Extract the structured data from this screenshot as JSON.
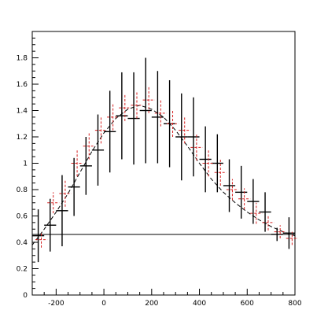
{
  "chart_data": {
    "type": "scatter",
    "title": "",
    "xlabel": "",
    "ylabel": "",
    "xlim": [
      -300,
      800
    ],
    "ylim": [
      0,
      2.0
    ],
    "x_ticks": [
      -200,
      0,
      200,
      400,
      600,
      800
    ],
    "x_tick_labels": [
      "-200",
      "0",
      "200",
      "400",
      "600",
      "800"
    ],
    "y_ticks": [
      0,
      0.2,
      0.4,
      0.6,
      0.8,
      1,
      1.2,
      1.4,
      1.6,
      1.8
    ],
    "y_tick_labels": [
      "0",
      "0.2",
      "0.4",
      "0.6",
      "0.8",
      "1",
      "1.2",
      "1.4",
      "1.6",
      "1.8"
    ],
    "grid": false,
    "legend": "none",
    "baseline": {
      "y": 0.46,
      "x_range": [
        -300,
        800
      ],
      "color": "#000000"
    },
    "fit_curve": {
      "style": "dashed",
      "color": "#000000",
      "x": [
        -300,
        -250,
        -200,
        -150,
        -100,
        -50,
        0,
        50,
        100,
        150,
        200,
        250,
        300,
        350,
        400,
        450,
        500,
        550,
        600,
        650,
        700,
        750,
        800
      ],
      "y": [
        0.38,
        0.5,
        0.63,
        0.77,
        0.93,
        1.09,
        1.23,
        1.34,
        1.41,
        1.44,
        1.41,
        1.35,
        1.25,
        1.13,
        1.0,
        0.88,
        0.78,
        0.7,
        0.63,
        0.57,
        0.52,
        0.48,
        0.45
      ]
    },
    "series": [
      {
        "style": "black-errorbars",
        "color": "#000000",
        "points": [
          {
            "x": -275,
            "y": 0.45,
            "xerr": 25,
            "yerr_low": 0.2,
            "yerr_high": 0.2
          },
          {
            "x": -225,
            "y": 0.53,
            "xerr": 25,
            "yerr_low": 0.2,
            "yerr_high": 0.2
          },
          {
            "x": -175,
            "y": 0.64,
            "xerr": 25,
            "yerr_low": 0.27,
            "yerr_high": 0.27
          },
          {
            "x": -125,
            "y": 0.82,
            "xerr": 25,
            "yerr_low": 0.22,
            "yerr_high": 0.22
          },
          {
            "x": -75,
            "y": 0.98,
            "xerr": 25,
            "yerr_low": 0.22,
            "yerr_high": 0.22
          },
          {
            "x": -25,
            "y": 1.1,
            "xerr": 25,
            "yerr_low": 0.27,
            "yerr_high": 0.27
          },
          {
            "x": 25,
            "y": 1.24,
            "xerr": 25,
            "yerr_low": 0.31,
            "yerr_high": 0.31
          },
          {
            "x": 75,
            "y": 1.36,
            "xerr": 25,
            "yerr_low": 0.33,
            "yerr_high": 0.33
          },
          {
            "x": 125,
            "y": 1.34,
            "xerr": 25,
            "yerr_low": 0.35,
            "yerr_high": 0.35
          },
          {
            "x": 175,
            "y": 1.4,
            "xerr": 25,
            "yerr_low": 0.4,
            "yerr_high": 0.4
          },
          {
            "x": 225,
            "y": 1.35,
            "xerr": 25,
            "yerr_low": 0.35,
            "yerr_high": 0.35
          },
          {
            "x": 275,
            "y": 1.3,
            "xerr": 25,
            "yerr_low": 0.33,
            "yerr_high": 0.33
          },
          {
            "x": 325,
            "y": 1.2,
            "xerr": 25,
            "yerr_low": 0.33,
            "yerr_high": 0.33
          },
          {
            "x": 375,
            "y": 1.2,
            "xerr": 25,
            "yerr_low": 0.3,
            "yerr_high": 0.3
          },
          {
            "x": 425,
            "y": 1.03,
            "xerr": 25,
            "yerr_low": 0.25,
            "yerr_high": 0.25
          },
          {
            "x": 475,
            "y": 1.0,
            "xerr": 25,
            "yerr_low": 0.22,
            "yerr_high": 0.22
          },
          {
            "x": 525,
            "y": 0.83,
            "xerr": 25,
            "yerr_low": 0.2,
            "yerr_high": 0.2
          },
          {
            "x": 575,
            "y": 0.78,
            "xerr": 25,
            "yerr_low": 0.2,
            "yerr_high": 0.2
          },
          {
            "x": 625,
            "y": 0.71,
            "xerr": 25,
            "yerr_low": 0.17,
            "yerr_high": 0.17
          },
          {
            "x": 675,
            "y": 0.63,
            "xerr": 25,
            "yerr_low": 0.15,
            "yerr_high": 0.15
          },
          {
            "x": 725,
            "y": 0.46,
            "xerr": 25,
            "yerr_low": 0.05,
            "yerr_high": 0.05
          },
          {
            "x": 775,
            "y": 0.47,
            "xerr": 25,
            "yerr_low": 0.12,
            "yerr_high": 0.12
          }
        ]
      },
      {
        "style": "red-dashed-errorbars",
        "color": "#d62020",
        "points": [
          {
            "x": -262,
            "y": 0.42,
            "xerr": 25,
            "yerr_low": 0.06,
            "yerr_high": 0.06
          },
          {
            "x": -212,
            "y": 0.7,
            "xerr": 25,
            "yerr_low": 0.08,
            "yerr_high": 0.08
          },
          {
            "x": -162,
            "y": 0.77,
            "xerr": 25,
            "yerr_low": 0.1,
            "yerr_high": 0.1
          },
          {
            "x": -112,
            "y": 1.0,
            "xerr": 25,
            "yerr_low": 0.1,
            "yerr_high": 0.1
          },
          {
            "x": -62,
            "y": 1.13,
            "xerr": 25,
            "yerr_low": 0.1,
            "yerr_high": 0.1
          },
          {
            "x": -12,
            "y": 1.25,
            "xerr": 25,
            "yerr_low": 0.1,
            "yerr_high": 0.1
          },
          {
            "x": 38,
            "y": 1.35,
            "xerr": 25,
            "yerr_low": 0.1,
            "yerr_high": 0.1
          },
          {
            "x": 88,
            "y": 1.42,
            "xerr": 25,
            "yerr_low": 0.1,
            "yerr_high": 0.1
          },
          {
            "x": 138,
            "y": 1.44,
            "xerr": 25,
            "yerr_low": 0.1,
            "yerr_high": 0.1
          },
          {
            "x": 188,
            "y": 1.48,
            "xerr": 25,
            "yerr_low": 0.1,
            "yerr_high": 0.1
          },
          {
            "x": 238,
            "y": 1.38,
            "xerr": 25,
            "yerr_low": 0.1,
            "yerr_high": 0.1
          },
          {
            "x": 288,
            "y": 1.3,
            "xerr": 25,
            "yerr_low": 0.1,
            "yerr_high": 0.1
          },
          {
            "x": 338,
            "y": 1.25,
            "xerr": 25,
            "yerr_low": 0.1,
            "yerr_high": 0.1
          },
          {
            "x": 388,
            "y": 1.12,
            "xerr": 25,
            "yerr_low": 0.1,
            "yerr_high": 0.1
          },
          {
            "x": 438,
            "y": 1.0,
            "xerr": 25,
            "yerr_low": 0.1,
            "yerr_high": 0.1
          },
          {
            "x": 488,
            "y": 0.93,
            "xerr": 25,
            "yerr_low": 0.1,
            "yerr_high": 0.1
          },
          {
            "x": 538,
            "y": 0.8,
            "xerr": 25,
            "yerr_low": 0.08,
            "yerr_high": 0.08
          },
          {
            "x": 588,
            "y": 0.73,
            "xerr": 25,
            "yerr_low": 0.08,
            "yerr_high": 0.08
          },
          {
            "x": 638,
            "y": 0.62,
            "xerr": 25,
            "yerr_low": 0.08,
            "yerr_high": 0.08
          },
          {
            "x": 688,
            "y": 0.55,
            "xerr": 25,
            "yerr_low": 0.06,
            "yerr_high": 0.06
          },
          {
            "x": 738,
            "y": 0.48,
            "xerr": 25,
            "yerr_low": 0.05,
            "yerr_high": 0.05
          },
          {
            "x": 788,
            "y": 0.43,
            "xerr": 25,
            "yerr_low": 0.05,
            "yerr_high": 0.05
          }
        ]
      }
    ]
  }
}
